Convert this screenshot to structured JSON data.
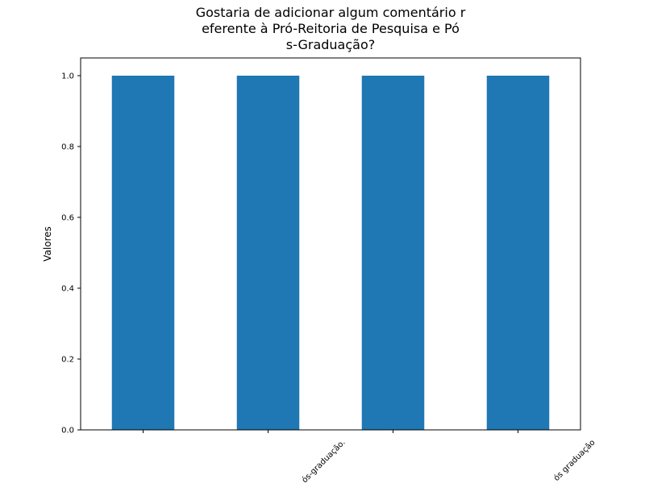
{
  "chart_data": {
    "type": "bar",
    "title_lines": [
      "Gostaria de adicionar algum comentário r",
      "eferente à Pró-Reitoria de Pesquisa e Pó",
      "s-Graduação?"
    ],
    "categories": [
      "",
      "ós-graduação.",
      "",
      "ós graduação"
    ],
    "values": [
      1.0,
      1.0,
      1.0,
      1.0
    ],
    "xlabel": "",
    "ylabel": "Valores",
    "ylim": [
      0,
      1.05
    ],
    "yticks": [
      0.0,
      0.2,
      0.4,
      0.6,
      0.8,
      1.0
    ],
    "ytick_labels": [
      "0.0",
      "0.2",
      "0.4",
      "0.6",
      "0.8",
      "1.0"
    ],
    "grid": false,
    "bar_color": "#1f77b4"
  }
}
